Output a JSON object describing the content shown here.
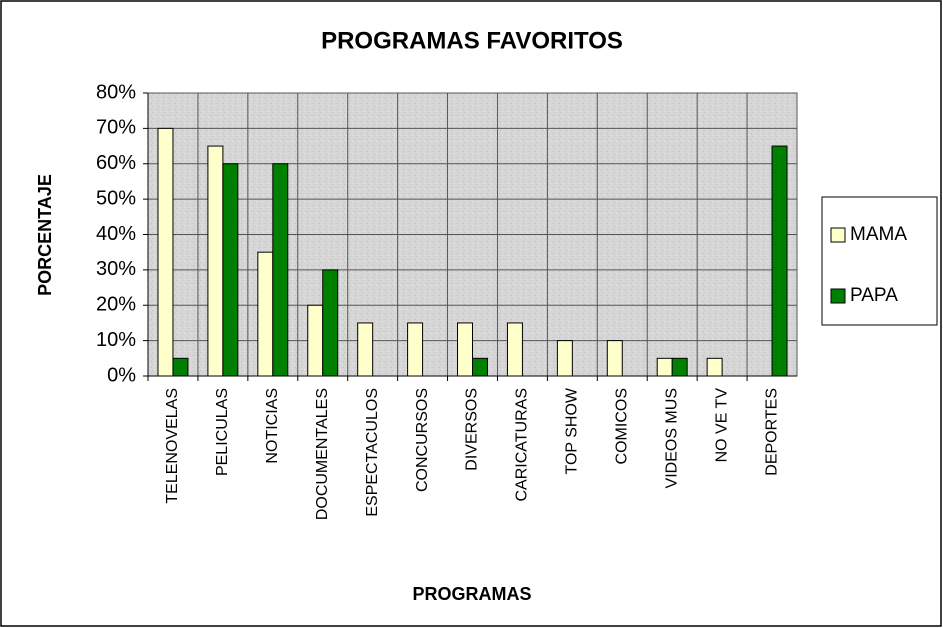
{
  "chart_data": {
    "type": "bar",
    "title": "PROGRAMAS FAVORITOS",
    "x_label": "PROGRAMAS",
    "y_label": "PORCENTAJE",
    "categories": [
      "TELENOVELAS",
      "PELICULAS",
      "NOTICIAS",
      "DOCUMENTALES",
      "ESPECTACULOS",
      "CONCURSOS",
      "DIVERSOS",
      "CARICATURAS",
      "TOP SHOW",
      "COMICOS",
      "VIDEOS MUS",
      "NO VE TV",
      "DEPORTES"
    ],
    "series": [
      {
        "name": "MAMA",
        "color": "#ffffcc",
        "values": [
          70,
          65,
          35,
          20,
          15,
          15,
          15,
          15,
          10,
          10,
          5,
          5,
          0
        ]
      },
      {
        "name": "PAPA",
        "color": "#008000",
        "values": [
          5,
          60,
          60,
          30,
          0,
          0,
          5,
          0,
          0,
          0,
          5,
          0,
          65
        ]
      }
    ],
    "ylim": [
      0,
      80
    ],
    "yticks": [
      {
        "value": 0,
        "label": "0%"
      },
      {
        "value": 10,
        "label": "10%"
      },
      {
        "value": 20,
        "label": "20%"
      },
      {
        "value": 30,
        "label": "30%"
      },
      {
        "value": 40,
        "label": "40%"
      },
      {
        "value": 50,
        "label": "50%"
      },
      {
        "value": 60,
        "label": "60%"
      },
      {
        "value": 70,
        "label": "70%"
      },
      {
        "value": 80,
        "label": "80%"
      }
    ],
    "grid": true,
    "legend": "right"
  }
}
